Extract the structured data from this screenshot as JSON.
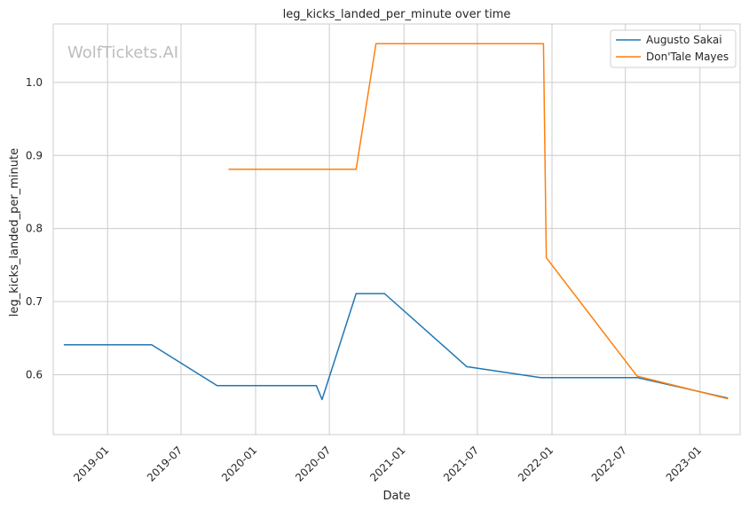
{
  "watermark": "WolfTickets.AI",
  "chart_data": {
    "type": "line",
    "title": "leg_kicks_landed_per_minute over time",
    "xlabel": "Date",
    "ylabel": "leg_kicks_landed_per_minute",
    "x_axis_type": "date",
    "xlim": [
      "2018-08-20",
      "2023-04-10"
    ],
    "ylim": [
      0.518,
      1.08
    ],
    "x_ticks": [
      {
        "date": "2019-01-01",
        "label": "2019-01"
      },
      {
        "date": "2019-07-01",
        "label": "2019-07"
      },
      {
        "date": "2020-01-01",
        "label": "2020-01"
      },
      {
        "date": "2020-07-01",
        "label": "2020-07"
      },
      {
        "date": "2021-01-01",
        "label": "2021-01"
      },
      {
        "date": "2021-07-01",
        "label": "2021-07"
      },
      {
        "date": "2022-01-01",
        "label": "2022-01"
      },
      {
        "date": "2022-07-01",
        "label": "2022-07"
      },
      {
        "date": "2023-01-01",
        "label": "2023-01"
      }
    ],
    "y_ticks": [
      {
        "value": 0.6,
        "label": "0.6"
      },
      {
        "value": 0.7,
        "label": "0.7"
      },
      {
        "value": 0.8,
        "label": "0.8"
      },
      {
        "value": 0.9,
        "label": "0.9"
      },
      {
        "value": 1.0,
        "label": "1.0"
      }
    ],
    "grid": true,
    "legend_position": "top-right",
    "series": [
      {
        "name": "Augusto Sakai",
        "color": "#1f77b4",
        "points": [
          {
            "x": "2018-09-15",
            "y": 0.641
          },
          {
            "x": "2019-04-20",
            "y": 0.641
          },
          {
            "x": "2019-09-28",
            "y": 0.585
          },
          {
            "x": "2020-05-30",
            "y": 0.585
          },
          {
            "x": "2020-06-13",
            "y": 0.566
          },
          {
            "x": "2020-09-05",
            "y": 0.711
          },
          {
            "x": "2020-11-14",
            "y": 0.711
          },
          {
            "x": "2021-06-05",
            "y": 0.611
          },
          {
            "x": "2021-12-04",
            "y": 0.596
          },
          {
            "x": "2022-07-30",
            "y": 0.596
          },
          {
            "x": "2023-03-11",
            "y": 0.568
          }
        ]
      },
      {
        "name": "Don'Tale Mayes",
        "color": "#ff7f0e",
        "points": [
          {
            "x": "2019-10-26",
            "y": 0.881
          },
          {
            "x": "2020-09-05",
            "y": 0.881
          },
          {
            "x": "2020-10-24",
            "y": 1.053
          },
          {
            "x": "2021-12-11",
            "y": 1.053
          },
          {
            "x": "2021-12-18",
            "y": 0.76
          },
          {
            "x": "2022-07-30",
            "y": 0.598
          },
          {
            "x": "2023-03-11",
            "y": 0.567
          }
        ]
      }
    ]
  }
}
